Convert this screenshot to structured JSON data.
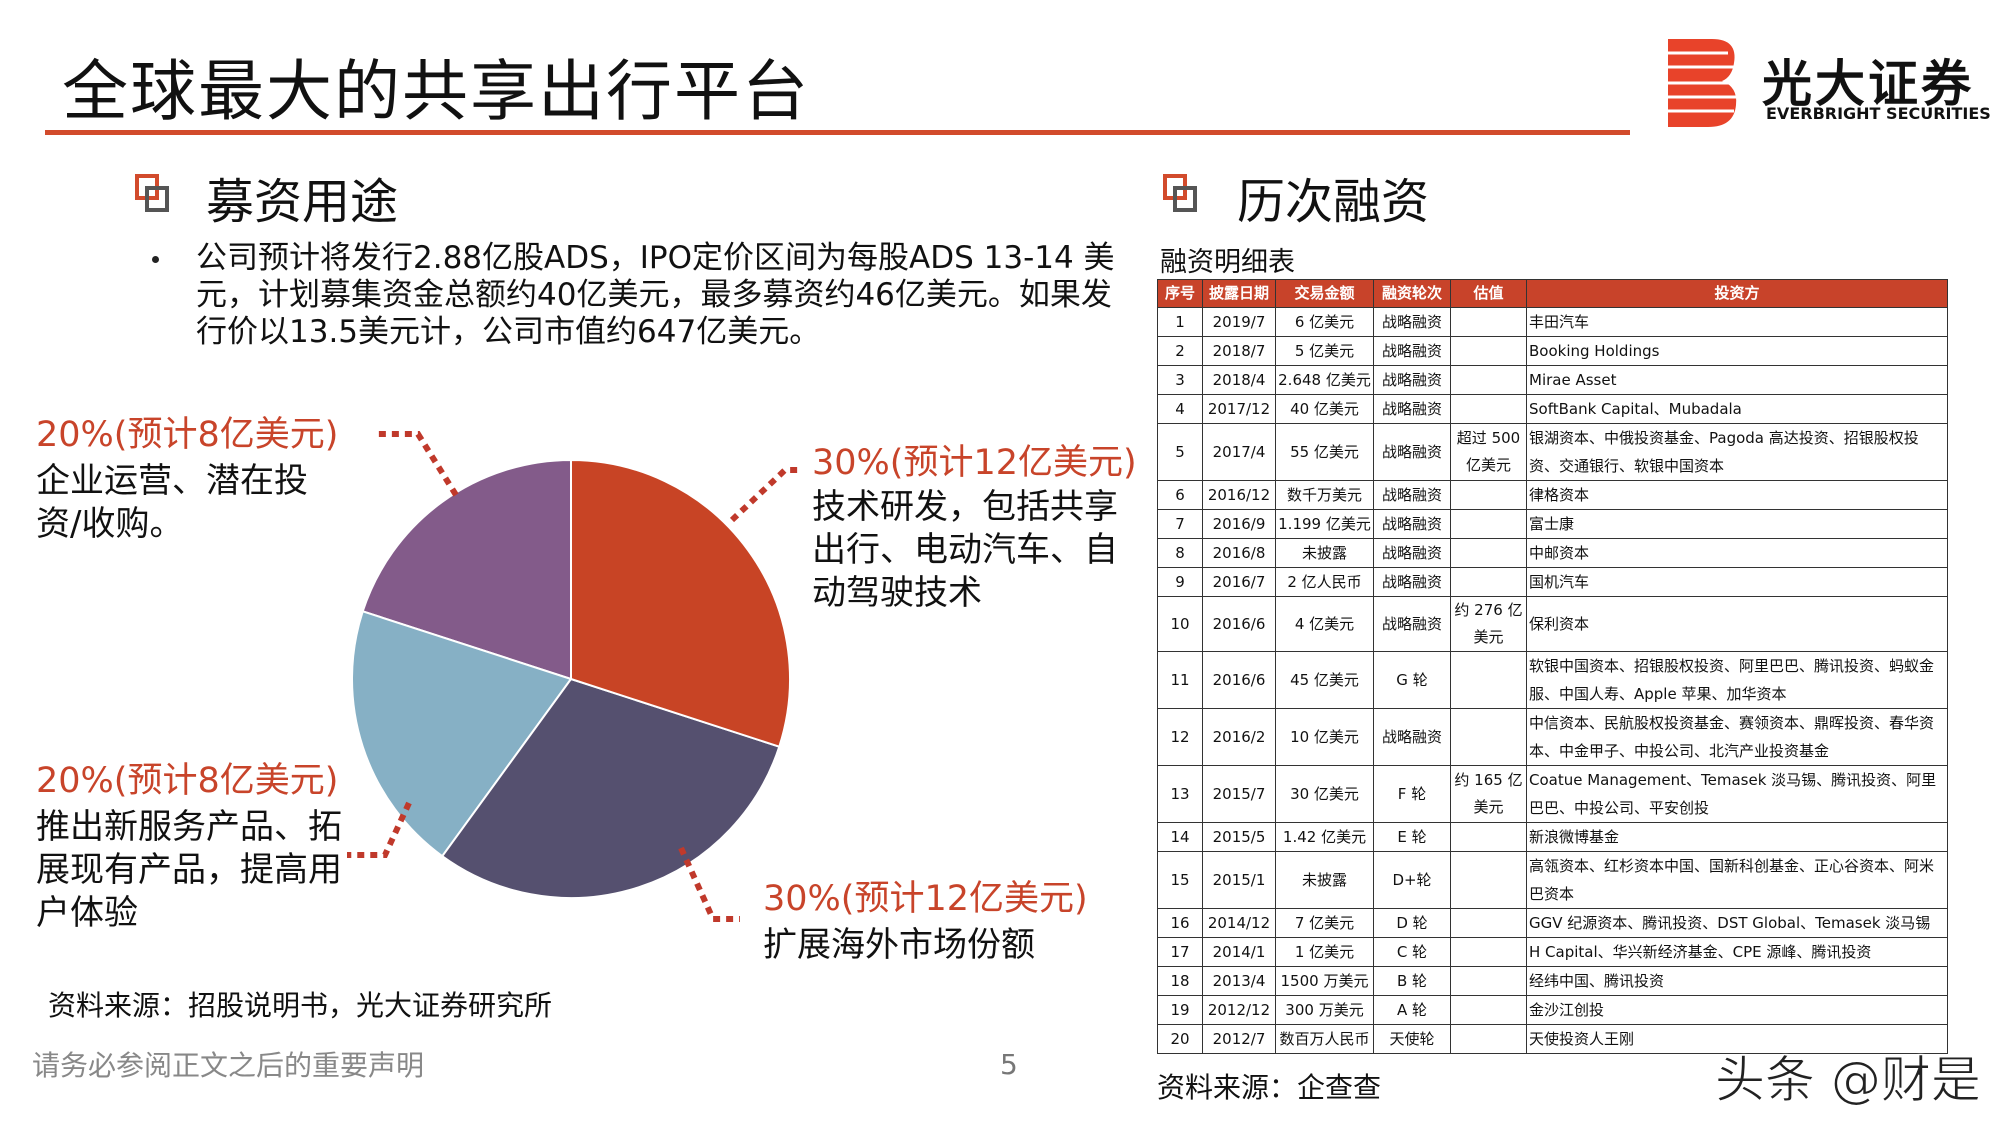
{
  "header": {
    "title": "全球最大的共享出行平台",
    "logo_name": "光大证券",
    "logo_sub": "EVERBRIGHT SECURITIES"
  },
  "left": {
    "section_title": "募资用途",
    "bullet": "公司预计将发行2.88亿股ADS，IPO定价区间为每股ADS 13-14 美元，计划募集资金总额约40亿美元，最多募资约46亿美元。如果发行价以13.5美元计，公司市值约647亿美元。",
    "source": "资料来源：招股说明书，光大证券研究所"
  },
  "chart_data": {
    "type": "pie",
    "categories": [
      "技术研发，包括共享出行、电动汽车、自动驾驶技术",
      "扩展海外市场份额",
      "推出新服务产品、拓展现有产品，提高用户体验",
      "企业运营、潜在投资/收购。"
    ],
    "values": [
      30,
      30,
      20,
      20
    ],
    "value_labels": [
      "30%(预计12亿美元)",
      "30%(预计12亿美元)",
      "20%(预计8亿美元)",
      "20%(预计8亿美元)"
    ],
    "colors": [
      "#c84425",
      "#55506f",
      "#86b0c5",
      "#835b8a"
    ]
  },
  "right": {
    "section_title": "历次融资",
    "caption": "融资明细表",
    "source": "资料来源：企查查"
  },
  "table": {
    "columns": [
      "序号",
      "披露日期",
      "交易金额",
      "融资轮次",
      "估值",
      "投资方"
    ],
    "rows": [
      {
        "no": "1",
        "date": "2019/7",
        "amount": "6 亿美元",
        "round": "战略融资",
        "investors": "丰田汽车"
      },
      {
        "no": "2",
        "date": "2018/7",
        "amount": "5 亿美元",
        "round": "战略融资",
        "investors": "Booking Holdings"
      },
      {
        "no": "3",
        "date": "2018/4",
        "amount": "2.648 亿美元",
        "round": "战略融资",
        "investors": "Mirae Asset"
      },
      {
        "no": "4",
        "date": "2017/12",
        "amount": "40 亿美元",
        "round": "战略融资",
        "investors": "SoftBank Capital、Mubadala"
      },
      {
        "no": "5",
        "date": "2017/4",
        "amount": "55 亿美元",
        "round": "战略融资",
        "valuation": "超过 500 亿美元",
        "investors": "银湖资本、中俄投资基金、Pagoda 高达投资、招银股权投资、交通银行、软银中国资本"
      },
      {
        "no": "6",
        "date": "2016/12",
        "amount": "数千万美元",
        "round": "战略融资",
        "investors": "律格资本"
      },
      {
        "no": "7",
        "date": "2016/9",
        "amount": "1.199 亿美元",
        "round": "战略融资",
        "investors": "富士康"
      },
      {
        "no": "8",
        "date": "2016/8",
        "amount": "未披露",
        "round": "战略融资",
        "investors": "中邮资本"
      },
      {
        "no": "9",
        "date": "2016/7",
        "amount": "2 亿人民币",
        "round": "战略融资",
        "investors": "国机汽车"
      },
      {
        "no": "10",
        "date": "2016/6",
        "amount": "4 亿美元",
        "round": "战略融资",
        "valuation": "约 276 亿美元",
        "investors": "保利资本"
      },
      {
        "no": "11",
        "date": "2016/6",
        "amount": "45 亿美元",
        "round": "G 轮",
        "investors": "软银中国资本、招银股权投资、阿里巴巴、腾讯投资、蚂蚁金服、中国人寿、Apple 苹果、加华资本"
      },
      {
        "no": "12",
        "date": "2016/2",
        "amount": "10 亿美元",
        "round": "战略融资",
        "investors": "中信资本、民航股权投资基金、赛领资本、鼎晖投资、春华资本、中金甲子、中投公司、北汽产业投资基金"
      },
      {
        "no": "13",
        "date": "2015/7",
        "amount": "30 亿美元",
        "round": "F 轮",
        "valuation": "约 165 亿美元",
        "investors": "Coatue Management、Temasek 淡马锡、腾讯投资、阿里巴巴、中投公司、平安创投"
      },
      {
        "no": "14",
        "date": "2015/5",
        "amount": "1.42 亿美元",
        "round": "E 轮",
        "investors": "新浪微博基金"
      },
      {
        "no": "15",
        "date": "2015/1",
        "amount": "未披露",
        "round": "D+轮",
        "investors": "高瓴资本、红杉资本中国、国新科创基金、正心谷资本、阿米巴资本"
      },
      {
        "no": "16",
        "date": "2014/12",
        "amount": "7 亿美元",
        "round": "D 轮",
        "investors": "GGV 纪源资本、腾讯投资、DST Global、Temasek 淡马锡"
      },
      {
        "no": "17",
        "date": "2014/1",
        "amount": "1 亿美元",
        "round": "C 轮",
        "investors": "H Capital、华兴新经济基金、CPE 源峰、腾讯投资"
      },
      {
        "no": "18",
        "date": "2013/4",
        "amount": "1500 万美元",
        "round": "B 轮",
        "investors": "经纬中国、腾讯投资"
      },
      {
        "no": "19",
        "date": "2012/12",
        "amount": "300 万美元",
        "round": "A 轮",
        "investors": "金沙江创投"
      },
      {
        "no": "20",
        "date": "2012/7",
        "amount": "数百万人民币",
        "round": "天使轮",
        "investors": "天使投资人王刚"
      }
    ]
  },
  "footer": {
    "disclaimer": "请务必参阅正文之后的重要声明",
    "page": "5",
    "watermark": "头条 @财是"
  }
}
